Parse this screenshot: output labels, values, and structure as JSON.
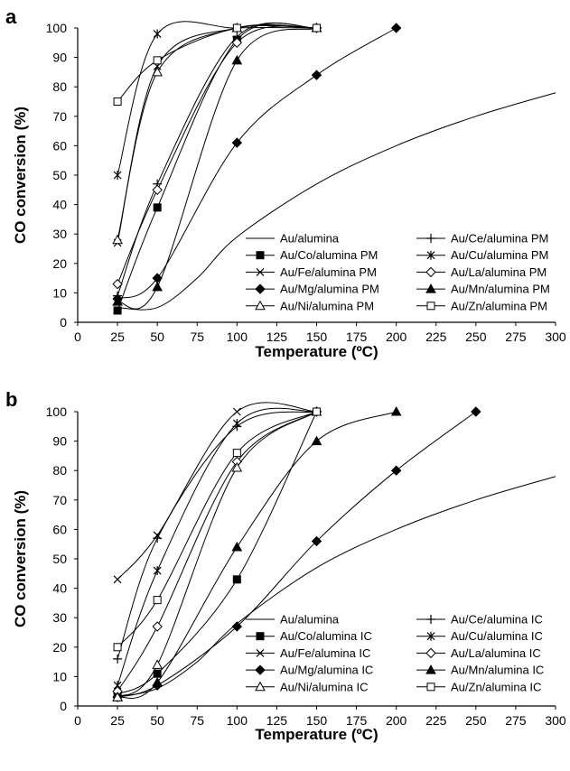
{
  "chart_data": [
    {
      "type": "line",
      "panel_label": "a",
      "xlabel": "Temperature (ºC)",
      "ylabel": "CO conversion (%)",
      "xlim": [
        0,
        300
      ],
      "ylim": [
        0,
        100
      ],
      "xticks": [
        0,
        25,
        50,
        75,
        100,
        125,
        150,
        175,
        200,
        225,
        250,
        275,
        300
      ],
      "yticks": [
        0,
        10,
        20,
        30,
        40,
        50,
        60,
        70,
        80,
        90,
        100
      ],
      "grid": false,
      "legend_placement": "bottom-right",
      "series": [
        {
          "name": "Au/alumina",
          "marker": "none",
          "smooth": true,
          "x": [
            25,
            50,
            75,
            100,
            150,
            200,
            250,
            300
          ],
          "y": [
            5,
            5,
            15,
            29,
            47,
            60,
            70,
            78
          ]
        },
        {
          "name": "Au/Ce/alumina PM",
          "marker": "plus",
          "x": [
            25,
            50,
            100,
            150
          ],
          "y": [
            9,
            47,
            97,
            100
          ]
        },
        {
          "name": "Au/Co/alumina PM",
          "marker": "filled-square",
          "x": [
            25,
            50,
            100,
            150
          ],
          "y": [
            4,
            39,
            96,
            100
          ]
        },
        {
          "name": "Au/Cu/alumina PM",
          "marker": "asterisk",
          "x": [
            25,
            50,
            100,
            150
          ],
          "y": [
            50,
            98,
            100,
            100
          ]
        },
        {
          "name": "Au/Fe/alumina PM",
          "marker": "x",
          "x": [
            25,
            50,
            100,
            150
          ],
          "y": [
            27,
            87,
            100,
            100
          ]
        },
        {
          "name": "Au/La/alumina PM",
          "marker": "open-diamond",
          "x": [
            25,
            50,
            100,
            150
          ],
          "y": [
            13,
            45,
            95,
            100
          ]
        },
        {
          "name": "Au/Mg/alumina PM",
          "marker": "filled-diamond",
          "x": [
            25,
            50,
            100,
            150,
            200
          ],
          "y": [
            8,
            15,
            61,
            84,
            100
          ]
        },
        {
          "name": "Au/Mn/alumina PM",
          "marker": "filled-triangle",
          "x": [
            25,
            50,
            100,
            150
          ],
          "y": [
            7,
            12,
            89,
            100
          ]
        },
        {
          "name": "Au/Ni/alumina PM",
          "marker": "open-triangle",
          "x": [
            25,
            50,
            100,
            150
          ],
          "y": [
            28,
            85,
            100,
            100
          ]
        },
        {
          "name": "Au/Zn/alumina PM",
          "marker": "open-square",
          "x": [
            25,
            50,
            100,
            150
          ],
          "y": [
            75,
            89,
            100,
            100
          ]
        }
      ]
    },
    {
      "type": "line",
      "panel_label": "b",
      "xlabel": "Temperature (ºC)",
      "ylabel": "CO conversion (%)",
      "xlim": [
        0,
        300
      ],
      "ylim": [
        0,
        100
      ],
      "xticks": [
        0,
        25,
        50,
        75,
        100,
        125,
        150,
        175,
        200,
        225,
        250,
        275,
        300
      ],
      "yticks": [
        0,
        10,
        20,
        30,
        40,
        50,
        60,
        70,
        80,
        90,
        100
      ],
      "grid": false,
      "legend_placement": "bottom-right",
      "series": [
        {
          "name": "Au/alumina",
          "marker": "none",
          "smooth": true,
          "x": [
            25,
            50,
            75,
            100,
            150,
            200,
            250,
            300
          ],
          "y": [
            3,
            6,
            15,
            28,
            47,
            60,
            70,
            78
          ]
        },
        {
          "name": "Au/Ce/alumina IC",
          "marker": "plus",
          "x": [
            25,
            50,
            100,
            150
          ],
          "y": [
            16,
            57,
            95,
            100
          ]
        },
        {
          "name": "Au/Co/alumina IC",
          "marker": "filled-square",
          "x": [
            25,
            50,
            100,
            150
          ],
          "y": [
            4,
            11,
            43,
            100
          ]
        },
        {
          "name": "Au/Cu/alumina IC",
          "marker": "asterisk",
          "x": [
            25,
            50,
            100,
            150
          ],
          "y": [
            7,
            46,
            96,
            100
          ]
        },
        {
          "name": "Au/Fe/alumina IC",
          "marker": "x",
          "x": [
            25,
            50,
            100,
            150
          ],
          "y": [
            43,
            58,
            100,
            100
          ]
        },
        {
          "name": "Au/La/alumina IC",
          "marker": "open-diamond",
          "x": [
            25,
            50,
            100,
            150
          ],
          "y": [
            5,
            27,
            83,
            100
          ]
        },
        {
          "name": "Au/Mg/alumina IC",
          "marker": "filled-diamond",
          "x": [
            25,
            50,
            100,
            150,
            200,
            250
          ],
          "y": [
            3,
            7,
            27,
            56,
            80,
            100
          ]
        },
        {
          "name": "Au/Mn/alumina IC",
          "marker": "filled-triangle",
          "x": [
            25,
            50,
            100,
            150,
            200
          ],
          "y": [
            3,
            8,
            54,
            90,
            100
          ]
        },
        {
          "name": "Au/Ni/alumina IC",
          "marker": "open-triangle",
          "x": [
            25,
            50,
            100,
            150
          ],
          "y": [
            3,
            14,
            81,
            100
          ]
        },
        {
          "name": "Au/Zn/alumina IC",
          "marker": "open-square",
          "x": [
            25,
            50,
            100,
            150
          ],
          "y": [
            20,
            36,
            86,
            100
          ]
        }
      ]
    }
  ]
}
